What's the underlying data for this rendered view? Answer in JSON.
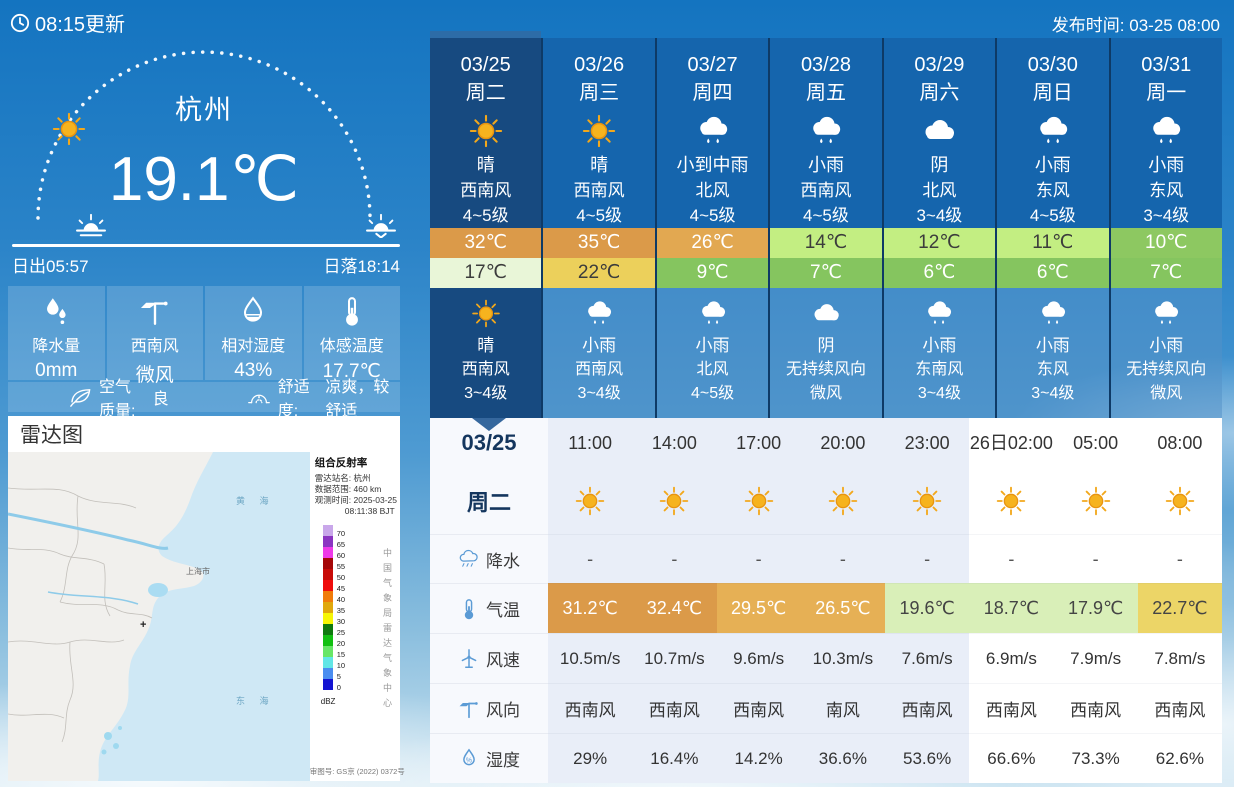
{
  "header": {
    "updated": "08:15更新",
    "published": "发布时间: 03-25 08:00"
  },
  "current": {
    "city": "杭州",
    "temperature": "19.1℃",
    "sunrise": "日出05:57",
    "sunset": "日落18:14",
    "metrics": [
      {
        "icon": "raindrops-icon",
        "label": "降水量",
        "value": "0mm"
      },
      {
        "icon": "wind-vane-icon",
        "label": "西南风",
        "value": "微风"
      },
      {
        "icon": "humidity-icon",
        "label": "相对湿度",
        "value": "43%"
      },
      {
        "icon": "thermometer-icon",
        "label": "体感温度",
        "value": "17.7℃"
      }
    ],
    "air_quality_label": "空气质量:",
    "air_quality_value": "良",
    "comfort_label": "舒适度:",
    "comfort_value": "凉爽，较舒适"
  },
  "radar": {
    "title": "雷达图",
    "legend": {
      "title": "组合反射率",
      "station_label": "雷达站名:",
      "station": "杭州",
      "range_label": "数据范围:",
      "range": "460 km",
      "obs_label": "观测时间:",
      "obs_date": "2025-03-25",
      "obs_time": "08:11:38 BJT",
      "unit": "dBZ",
      "watermark": "中国气象局雷达气象中心",
      "approval": "审图号: GS京 (2022) 0372号",
      "scale": [
        {
          "color": "#c9a7ea",
          "tick": "70"
        },
        {
          "color": "#8b35c2",
          "tick": "65"
        },
        {
          "color": "#ee3ae8",
          "tick": "60"
        },
        {
          "color": "#a50708",
          "tick": "55"
        },
        {
          "color": "#c80b08",
          "tick": "50"
        },
        {
          "color": "#ef0d0c",
          "tick": "45"
        },
        {
          "color": "#f07b0a",
          "tick": "40"
        },
        {
          "color": "#e0a80c",
          "tick": "35"
        },
        {
          "color": "#f6f606",
          "tick": "30"
        },
        {
          "color": "#0f7a0f",
          "tick": "25"
        },
        {
          "color": "#12c012",
          "tick": "20"
        },
        {
          "color": "#67e667",
          "tick": "15"
        },
        {
          "color": "#62e6e6",
          "tick": "10"
        },
        {
          "color": "#4a8df0",
          "tick": "5"
        },
        {
          "color": "#1414d2",
          "tick": "0"
        }
      ]
    },
    "map": {
      "sea_north": "黄 海",
      "sea_east": "东 海",
      "city": "上海市",
      "marker": "+"
    }
  },
  "forecast": {
    "days": [
      {
        "date": "03/25",
        "week": "周二",
        "selected": true,
        "day": {
          "icon": "sun-icon",
          "text": "晴",
          "wind": "西南风",
          "level": "4~5级"
        },
        "high": {
          "value": "32℃",
          "bg": "#db9a49",
          "color": "#ffffff"
        },
        "low": {
          "value": "17℃",
          "bg": "#e9f6d8",
          "color": "#3c3c3c"
        },
        "night": {
          "icon": "sun-icon",
          "text": "晴",
          "wind": "西南风",
          "level": "3~4级"
        }
      },
      {
        "date": "03/26",
        "week": "周三",
        "selected": false,
        "day": {
          "icon": "sun-icon",
          "text": "晴",
          "wind": "西南风",
          "level": "4~5级"
        },
        "high": {
          "value": "35℃",
          "bg": "#db9a49",
          "color": "#ffffff"
        },
        "low": {
          "value": "22℃",
          "bg": "#ecd05b",
          "color": "#3c3c3c"
        },
        "night": {
          "icon": "rain-icon",
          "text": "小雨",
          "wind": "西南风",
          "level": "3~4级"
        }
      },
      {
        "date": "03/27",
        "week": "周四",
        "selected": false,
        "day": {
          "icon": "rain-icon",
          "text": "小到中雨",
          "wind": "北风",
          "level": "4~5级"
        },
        "high": {
          "value": "26℃",
          "bg": "#e2a851",
          "color": "#ffffff"
        },
        "low": {
          "value": "9℃",
          "bg": "#85c55f",
          "color": "#ffffff"
        },
        "night": {
          "icon": "rain-icon",
          "text": "小雨",
          "wind": "北风",
          "level": "4~5级"
        }
      },
      {
        "date": "03/28",
        "week": "周五",
        "selected": false,
        "day": {
          "icon": "rain-icon",
          "text": "小雨",
          "wind": "西南风",
          "level": "4~5级"
        },
        "high": {
          "value": "14℃",
          "bg": "#c3ee82",
          "color": "#3c3c3c"
        },
        "low": {
          "value": "7℃",
          "bg": "#85c55f",
          "color": "#ffffff"
        },
        "night": {
          "icon": "cloud-icon",
          "text": "阴",
          "wind": "无持续风向",
          "level": "微风"
        }
      },
      {
        "date": "03/29",
        "week": "周六",
        "selected": false,
        "day": {
          "icon": "cloud-icon",
          "text": "阴",
          "wind": "北风",
          "level": "3~4级"
        },
        "high": {
          "value": "12℃",
          "bg": "#c3ee82",
          "color": "#3c3c3c"
        },
        "low": {
          "value": "6℃",
          "bg": "#85c55f",
          "color": "#ffffff"
        },
        "night": {
          "icon": "rain-icon",
          "text": "小雨",
          "wind": "东南风",
          "level": "3~4级"
        }
      },
      {
        "date": "03/30",
        "week": "周日",
        "selected": false,
        "day": {
          "icon": "rain-icon",
          "text": "小雨",
          "wind": "东风",
          "level": "4~5级"
        },
        "high": {
          "value": "11℃",
          "bg": "#c3ee82",
          "color": "#3c3c3c"
        },
        "low": {
          "value": "6℃",
          "bg": "#85c55f",
          "color": "#ffffff"
        },
        "night": {
          "icon": "rain-icon",
          "text": "小雨",
          "wind": "东风",
          "level": "3~4级"
        }
      },
      {
        "date": "03/31",
        "week": "周一",
        "selected": false,
        "day": {
          "icon": "rain-icon",
          "text": "小雨",
          "wind": "东风",
          "level": "3~4级"
        },
        "high": {
          "value": "10℃",
          "bg": "#8dc861",
          "color": "#ffffff"
        },
        "low": {
          "value": "7℃",
          "bg": "#85c55f",
          "color": "#ffffff"
        },
        "night": {
          "icon": "rain-icon",
          "text": "小雨",
          "wind": "无持续风向",
          "level": "微风"
        }
      }
    ]
  },
  "hourly": {
    "date": "03/25",
    "week": "周二",
    "row_labels": [
      {
        "key": "precip",
        "icon": "rain-cloud-icon",
        "label": "降水"
      },
      {
        "key": "temp",
        "icon": "thermometer-blue-icon",
        "label": "气温"
      },
      {
        "key": "wind_speed",
        "icon": "wind-turbine-icon",
        "label": "风速"
      },
      {
        "key": "wind_dir",
        "icon": "wind-vane-blue-icon",
        "label": "风向"
      },
      {
        "key": "humidity",
        "icon": "humidity-blue-icon",
        "label": "湿度"
      }
    ],
    "columns": [
      {
        "time": "11:00",
        "icon": "sun-icon",
        "precip": "-",
        "temp": "31.2℃",
        "temp_bg": "#db9a49",
        "temp_color": "#ffffff",
        "wind_speed": "10.5m/s",
        "wind_dir": "西南风",
        "humidity": "29%",
        "zone": "today"
      },
      {
        "time": "14:00",
        "icon": "sun-icon",
        "precip": "-",
        "temp": "32.4℃",
        "temp_bg": "#db9a49",
        "temp_color": "#ffffff",
        "wind_speed": "10.7m/s",
        "wind_dir": "西南风",
        "humidity": "16.4%",
        "zone": "today"
      },
      {
        "time": "17:00",
        "icon": "sun-icon",
        "precip": "-",
        "temp": "29.5℃",
        "temp_bg": "#e6b055",
        "temp_color": "#ffffff",
        "wind_speed": "9.6m/s",
        "wind_dir": "西南风",
        "humidity": "14.2%",
        "zone": "today"
      },
      {
        "time": "20:00",
        "icon": "sun-icon",
        "precip": "-",
        "temp": "26.5℃",
        "temp_bg": "#e6b055",
        "temp_color": "#ffffff",
        "wind_speed": "10.3m/s",
        "wind_dir": "南风",
        "humidity": "36.6%",
        "zone": "today"
      },
      {
        "time": "23:00",
        "icon": "sun-icon",
        "precip": "-",
        "temp": "19.6℃",
        "temp_bg": "#d9efb8",
        "temp_color": "#444444",
        "wind_speed": "7.6m/s",
        "wind_dir": "西南风",
        "humidity": "53.6%",
        "zone": "today"
      },
      {
        "time": "26日02:00",
        "icon": "sun-icon",
        "precip": "-",
        "temp": "18.7℃",
        "temp_bg": "#d9efb8",
        "temp_color": "#444444",
        "wind_speed": "6.9m/s",
        "wind_dir": "西南风",
        "humidity": "66.6%",
        "zone": "tomorrow"
      },
      {
        "time": "05:00",
        "icon": "sun-icon",
        "precip": "-",
        "temp": "17.9℃",
        "temp_bg": "#d9efb8",
        "temp_color": "#444444",
        "wind_speed": "7.9m/s",
        "wind_dir": "西南风",
        "humidity": "73.3%",
        "zone": "tomorrow"
      },
      {
        "time": "08:00",
        "icon": "sun-icon",
        "precip": "-",
        "temp": "22.7℃",
        "temp_bg": "#ecd567",
        "temp_color": "#444444",
        "wind_speed": "7.8m/s",
        "wind_dir": "西南风",
        "humidity": "62.6%",
        "zone": "tomorrow"
      }
    ]
  }
}
